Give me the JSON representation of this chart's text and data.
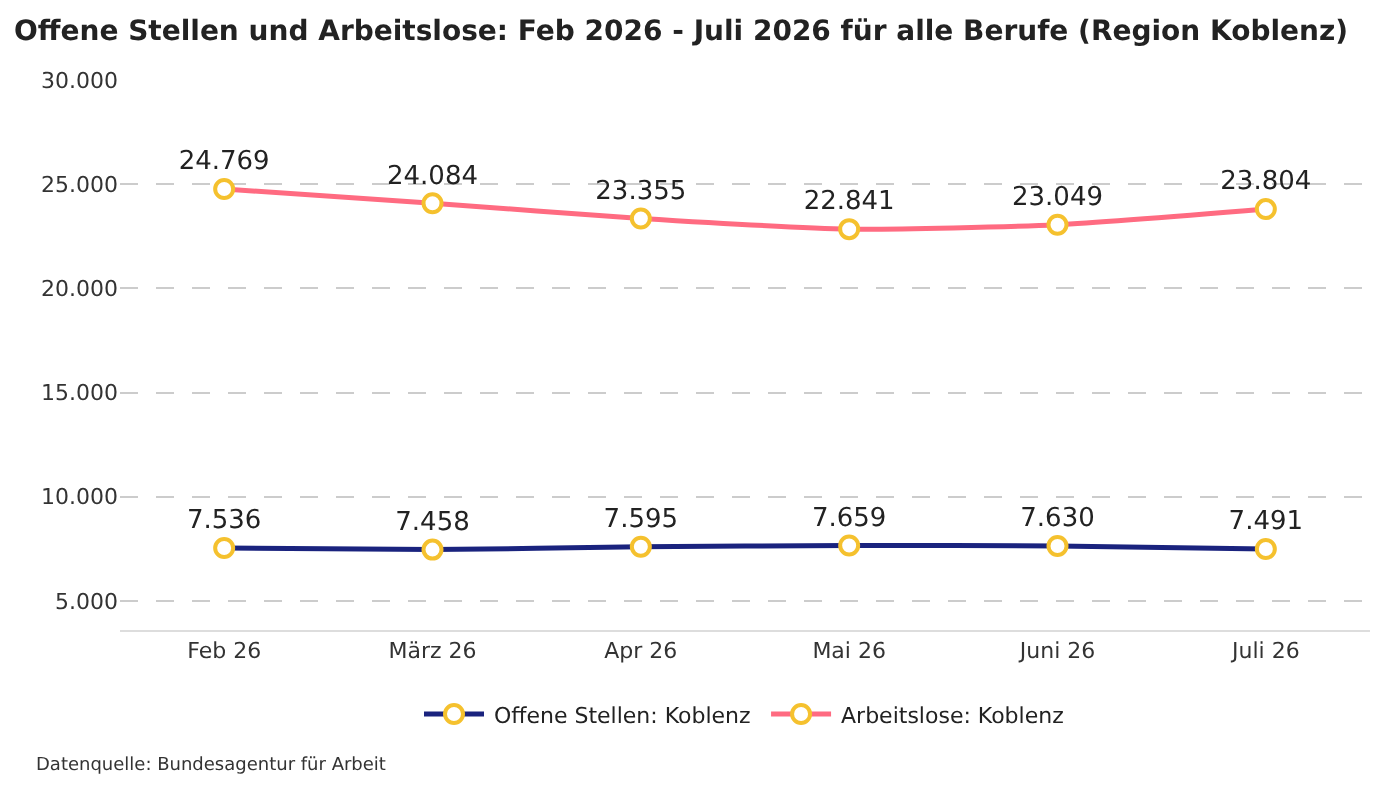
{
  "chart_data": {
    "type": "line",
    "title": "Offene Stellen und Arbeitslose: Feb 2026 - Juli 2026 für alle Berufe (Region Koblenz)",
    "categories": [
      "Feb 26",
      "März 26",
      "Apr 26",
      "Mai 26",
      "Juni 26",
      "Juli 26"
    ],
    "series": [
      {
        "name": "Offene Stellen: Koblenz",
        "color": "#1a237e",
        "values": [
          7536,
          7458,
          7595,
          7659,
          7630,
          7491
        ],
        "value_labels": [
          "7.536",
          "7.458",
          "7.595",
          "7.659",
          "7.630",
          "7.491"
        ]
      },
      {
        "name": "Arbeitslose: Koblenz",
        "color": "#ff6b81",
        "values": [
          24769,
          24084,
          23355,
          22841,
          23049,
          23804
        ],
        "value_labels": [
          "24.769",
          "24.084",
          "23.355",
          "22.841",
          "23.049",
          "23.804"
        ]
      }
    ],
    "ylim": [
      3600,
      30000
    ],
    "yticks": [
      {
        "value": 5000,
        "label": "5.000"
      },
      {
        "value": 10000,
        "label": "10.000"
      },
      {
        "value": 15000,
        "label": "15.000"
      },
      {
        "value": 20000,
        "label": "20.000"
      },
      {
        "value": 25000,
        "label": "25.000"
      },
      {
        "value": 30000,
        "label": "30.000"
      }
    ],
    "grid": "y",
    "legend": "bottom",
    "marker": "circle",
    "line_style": "solid",
    "annotations": [
      "Datenquelle: Bundesagentur für Arbeit"
    ]
  }
}
